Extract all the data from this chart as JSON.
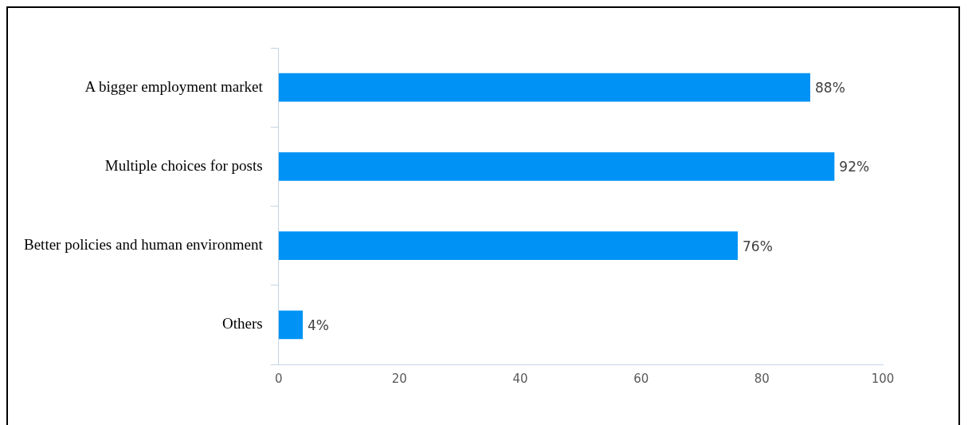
{
  "chart_data": {
    "type": "bar",
    "orientation": "horizontal",
    "categories": [
      "A bigger employment market",
      "Multiple choices for posts",
      "Better policies and human environment",
      "Others"
    ],
    "values": [
      88,
      92,
      76,
      4
    ],
    "color": "#0093f5",
    "value_labels": [
      "88%",
      "92%",
      "76%",
      "4%"
    ],
    "xlim": [
      0,
      100
    ],
    "xticks": [
      0,
      20,
      40,
      60,
      80,
      100
    ],
    "grid": false,
    "legend": false
  }
}
